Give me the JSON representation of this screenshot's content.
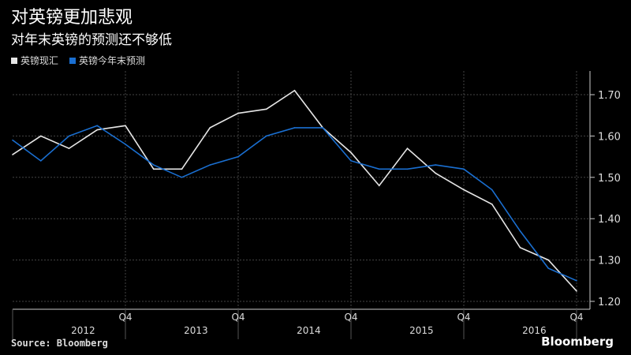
{
  "title": "对英镑更加悲观",
  "subtitle": "对年末英镑的预测还不够低",
  "source": "Source: Bloomberg",
  "brand": "Bloomberg",
  "chart_data": {
    "type": "line",
    "title": "对英镑更加悲观",
    "subtitle": "对年末英镑的预测还不够低",
    "x": [
      "2011Q4",
      "2012Q1",
      "2012Q2",
      "2012Q3",
      "2012Q4",
      "2013Q1",
      "2013Q2",
      "2013Q3",
      "2013Q4",
      "2014Q1",
      "2014Q2",
      "2014Q3",
      "2014Q4",
      "2015Q1",
      "2015Q2",
      "2015Q3",
      "2015Q4",
      "2016Q1",
      "2016Q2",
      "2016Q3",
      "2016Q4"
    ],
    "series": [
      {
        "name": "英镑现汇",
        "color": "#e6e6e6",
        "values": [
          1.555,
          1.6,
          1.57,
          1.615,
          1.625,
          1.52,
          1.52,
          1.62,
          1.655,
          1.665,
          1.71,
          1.62,
          1.56,
          1.48,
          1.57,
          1.51,
          1.47,
          1.435,
          1.33,
          1.3,
          1.225
        ]
      },
      {
        "name": "英镑今年末预测",
        "color": "#1a6fd1",
        "values": [
          1.59,
          1.54,
          1.6,
          1.625,
          1.58,
          1.53,
          1.5,
          1.53,
          1.55,
          1.6,
          1.62,
          1.62,
          1.54,
          1.52,
          1.52,
          1.53,
          1.52,
          1.47,
          1.37,
          1.28,
          1.25
        ]
      }
    ],
    "yticks": [
      "1.20",
      "1.30",
      "1.40",
      "1.50",
      "1.60",
      "1.70"
    ],
    "ylim": [
      1.18,
      1.76
    ],
    "quarter_label": "Q4",
    "year_labels": [
      "2012",
      "2013",
      "2014",
      "2015",
      "2016"
    ],
    "legend": "top-left",
    "grid": true
  }
}
